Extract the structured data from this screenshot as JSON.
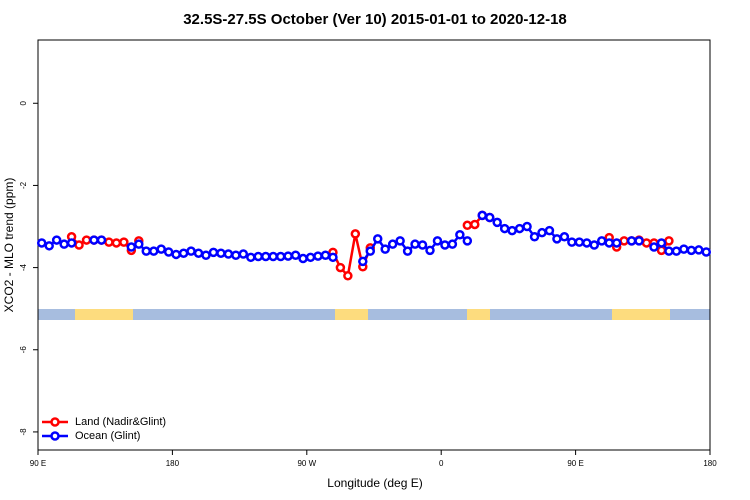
{
  "chart_data": {
    "type": "line",
    "title": "32.5S-27.5S October (Ver 10)   2015-01-01 to 2020-12-18",
    "xlabel": "Longitude (deg E)",
    "ylabel": "XCO2 - MLO trend (ppm)",
    "x": [
      92.5,
      97.5,
      102.5,
      107.5,
      112.5,
      117.5,
      122.5,
      127.5,
      132.5,
      137.5,
      142.5,
      147.5,
      152.5,
      157.5,
      162.5,
      167.5,
      172.5,
      177.5,
      182.5,
      187.5,
      192.5,
      197.5,
      202.5,
      207.5,
      212.5,
      217.5,
      222.5,
      227.5,
      232.5,
      237.5,
      242.5,
      247.5,
      252.5,
      257.5,
      262.5,
      267.5,
      272.5,
      277.5,
      282.5,
      287.5,
      292.5,
      297.5,
      302.5,
      307.5,
      312.5,
      317.5,
      322.5,
      327.5,
      332.5,
      337.5,
      342.5,
      347.5,
      352.5,
      357.5,
      362.5,
      367.5,
      372.5,
      377.5,
      382.5,
      387.5,
      392.5,
      397.5,
      402.5,
      407.5,
      412.5,
      417.5,
      422.5,
      427.5,
      432.5,
      437.5,
      442.5,
      447.5,
      452.5,
      457.5,
      462.5,
      467.5,
      472.5,
      477.5,
      482.5,
      487.5,
      492.5,
      497.5,
      502.5,
      507.5,
      512.5,
      517.5,
      522.5,
      527.5,
      532.5,
      537.5
    ],
    "series": [
      {
        "name": "Land (Nadir&Glint)",
        "color": "#ff0000",
        "values": [
          null,
          null,
          null,
          null,
          -3.25,
          -3.45,
          -3.33,
          -3.33,
          -3.33,
          -3.38,
          -3.4,
          -3.38,
          -3.58,
          -3.35,
          null,
          null,
          null,
          null,
          null,
          null,
          null,
          null,
          null,
          null,
          null,
          null,
          null,
          null,
          null,
          null,
          null,
          null,
          null,
          null,
          null,
          null,
          null,
          null,
          null,
          -3.63,
          -4.0,
          -4.2,
          -3.18,
          -3.98,
          -3.52,
          null,
          null,
          null,
          null,
          null,
          null,
          null,
          null,
          null,
          null,
          null,
          null,
          -2.97,
          -2.95,
          -2.73,
          -2.78,
          null,
          null,
          null,
          null,
          null,
          null,
          null,
          null,
          null,
          null,
          null,
          null,
          null,
          null,
          null,
          -3.27,
          -3.5,
          -3.35,
          -3.35,
          -3.33,
          -3.4,
          -3.4,
          -3.58,
          -3.35,
          null,
          null,
          null,
          null,
          null
        ]
      },
      {
        "name": "Ocean (Glint)",
        "color": "#0000ff",
        "values": [
          -3.4,
          -3.47,
          -3.33,
          -3.43,
          -3.4,
          null,
          null,
          -3.33,
          -3.33,
          null,
          null,
          null,
          -3.5,
          -3.43,
          -3.6,
          -3.6,
          -3.55,
          -3.62,
          -3.68,
          -3.65,
          -3.6,
          -3.65,
          -3.7,
          -3.63,
          -3.65,
          -3.67,
          -3.7,
          -3.67,
          -3.75,
          -3.73,
          -3.73,
          -3.73,
          -3.73,
          -3.72,
          -3.7,
          -3.78,
          -3.75,
          -3.72,
          -3.7,
          -3.75,
          null,
          null,
          null,
          -3.85,
          -3.6,
          -3.3,
          -3.55,
          -3.43,
          -3.35,
          -3.6,
          -3.43,
          -3.45,
          -3.58,
          -3.35,
          -3.45,
          -3.43,
          -3.2,
          -3.35,
          null,
          -2.73,
          -2.78,
          -2.9,
          -3.05,
          -3.1,
          -3.05,
          -3.0,
          -3.25,
          -3.15,
          -3.1,
          -3.3,
          -3.25,
          -3.38,
          -3.38,
          -3.4,
          -3.45,
          -3.35,
          -3.4,
          -3.4,
          null,
          -3.35,
          -3.35,
          null,
          -3.5,
          -3.4,
          -3.6,
          -3.6,
          -3.55,
          -3.58,
          -3.57,
          -3.62
        ]
      }
    ],
    "xlim": [
      90,
      540
    ],
    "ylim": [
      -8.44,
      1.54
    ],
    "xticks": [
      {
        "value": 90,
        "label": "90 E"
      },
      180,
      {
        "value": 270,
        "label": "90 W"
      },
      {
        "value": 360,
        "label": "0"
      },
      {
        "value": 450,
        "label": "90 E"
      },
      {
        "value": 540,
        "label": "180"
      }
    ],
    "yticks": [
      0,
      -2,
      -4,
      -6,
      -8
    ],
    "legend": "bottom-left"
  }
}
